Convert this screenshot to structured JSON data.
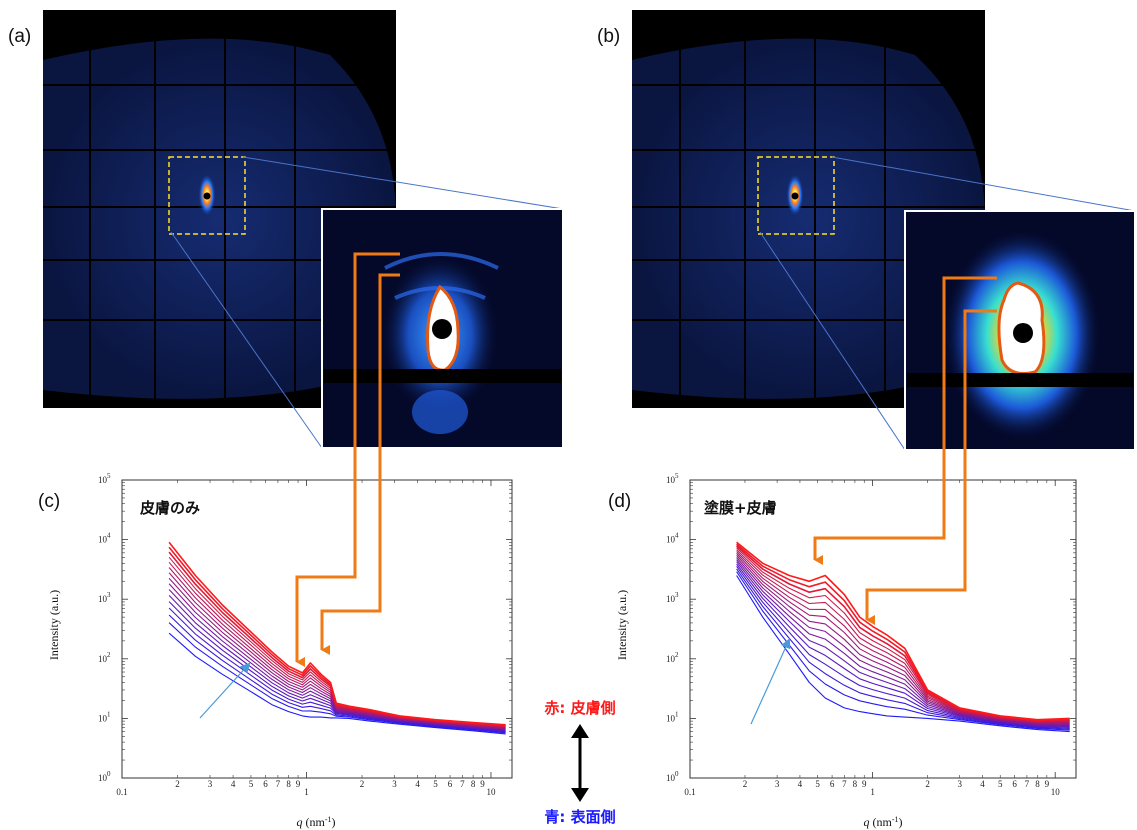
{
  "panel_labels": {
    "a": "(a)",
    "b": "(b)",
    "c": "(c)",
    "d": "(d)"
  },
  "legend": {
    "red": "赤: 皮膚側",
    "blue": "青: 表面側",
    "red_color": "#ff1a1a",
    "blue_color": "#1a1aff"
  },
  "axes": {
    "ylabel": "Intensity (a.u.)",
    "xlabel_q": "q",
    "xlabel_unit": " (nm",
    "xlabel_exp": "-1",
    "xlabel_close": ")"
  },
  "colors": {
    "arrow": "#f07a14",
    "inset_link": "#4a74c9",
    "blue_arrow": "#4a9ad8",
    "dashed_box": "#ffe02a"
  },
  "chart_data": [
    {
      "type": "line",
      "panel": "(c)",
      "title": "皮膚のみ",
      "xlabel": "q (nm-1)",
      "ylabel": "Intensity (a.u.)",
      "xscale": "log",
      "yscale": "log",
      "xlim": [
        0.1,
        13
      ],
      "ylim": [
        1,
        100000
      ],
      "xticks": [
        "0.1",
        "1",
        "10"
      ],
      "yticks": [
        "10^0",
        "10^1",
        "10^2",
        "10^3",
        "10^4",
        "10^5"
      ],
      "minor_x_labels": [
        "2",
        "3",
        "4",
        "5",
        "6",
        "7",
        "8",
        "9",
        "2",
        "3",
        "4",
        "5",
        "6",
        "7",
        "8",
        "9"
      ],
      "x": [
        0.18,
        0.25,
        0.35,
        0.5,
        0.65,
        0.8,
        0.95,
        1.05,
        1.2,
        1.35,
        1.45,
        1.7,
        2.2,
        3.2,
        5,
        8,
        12
      ],
      "series_count": 16,
      "series_range": {
        "surface": [
          270,
          110,
          55,
          28,
          17,
          13,
          11,
          10.5,
          10.5,
          10.2,
          10.2,
          10,
          9,
          8,
          7,
          6.2,
          5.5
        ],
        "skin": [
          9000,
          2500,
          800,
          280,
          130,
          75,
          58,
          85,
          55,
          40,
          18,
          16,
          14,
          11,
          9.5,
          8.5,
          7.8
        ]
      },
      "peaks": [
        1.0,
        1.35
      ],
      "annotation": "arrow at q≈0.45 pointing toward increasing intensity"
    },
    {
      "type": "line",
      "panel": "(d)",
      "title": "塗膜+皮膚",
      "xlabel": "q (nm-1)",
      "ylabel": "Intensity (a.u.)",
      "xscale": "log",
      "yscale": "log",
      "xlim": [
        0.1,
        13
      ],
      "ylim": [
        1,
        100000
      ],
      "xticks": [
        "0.1",
        "1",
        "10"
      ],
      "yticks": [
        "10^0",
        "10^1",
        "10^2",
        "10^3",
        "10^4",
        "10^5"
      ],
      "minor_x_labels": [
        "2",
        "3",
        "4",
        "5",
        "6",
        "7",
        "8",
        "9",
        "2",
        "3",
        "4",
        "5",
        "6",
        "7",
        "8",
        "9"
      ],
      "x": [
        0.18,
        0.25,
        0.35,
        0.45,
        0.55,
        0.7,
        0.85,
        1.0,
        1.2,
        1.5,
        2.0,
        3.0,
        5.0,
        8.0,
        12
      ],
      "series_count": 16,
      "series_range": {
        "surface": [
          2500,
          500,
          120,
          40,
          22,
          15,
          13,
          12,
          11,
          10.5,
          10,
          9,
          7.5,
          6.5,
          6
        ],
        "skin": [
          9000,
          4000,
          2500,
          2000,
          2500,
          1200,
          500,
          350,
          250,
          150,
          30,
          15,
          11,
          9.5,
          10
        ]
      },
      "peaks": [
        0.55,
        1.0
      ],
      "annotation": "arrow at q≈0.35 pointing toward increasing intensity"
    }
  ]
}
